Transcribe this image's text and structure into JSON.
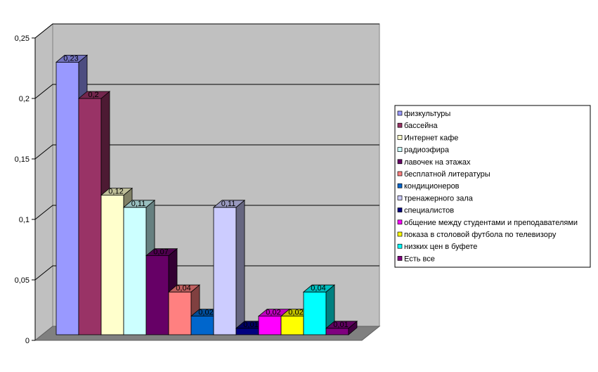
{
  "chart_data": {
    "type": "bar",
    "title": "",
    "xlabel": "",
    "ylabel": "",
    "ylim": [
      0,
      0.25
    ],
    "y_ticks": [
      "0",
      "0,05",
      "0,1",
      "0,15",
      "0,2",
      "0,25"
    ],
    "grid": true,
    "legend_position": "right",
    "series": [
      {
        "name": "физкультуры",
        "value": 0.23,
        "label": "0,23",
        "color": "#9999ff"
      },
      {
        "name": "бассейна",
        "value": 0.2,
        "label": "0,2",
        "color": "#993366"
      },
      {
        "name": "Интернет кафе",
        "value": 0.12,
        "label": "0,12",
        "color": "#ffffcc"
      },
      {
        "name": "радиоэфира",
        "value": 0.11,
        "label": "0,11",
        "color": "#ccffff"
      },
      {
        "name": "лавочек на этажах",
        "value": 0.07,
        "label": "0,07",
        "color": "#660066"
      },
      {
        "name": "бесплатной литературы",
        "value": 0.04,
        "label": "0,04",
        "color": "#ff8080"
      },
      {
        "name": "кондиционеров",
        "value": 0.02,
        "label": "0,02",
        "color": "#0066cc"
      },
      {
        "name": "тренажерного зала",
        "value": 0.11,
        "label": "0,11",
        "color": "#ccccff"
      },
      {
        "name": "специалистов",
        "value": 0.01,
        "label": "0,01",
        "color": "#000080"
      },
      {
        "name": "общение между студентами и преподавателями",
        "value": 0.02,
        "label": "0,02",
        "color": "#ff00ff"
      },
      {
        "name": "показа в столовой футбола по телевизору",
        "value": 0.02,
        "label": "0,02",
        "color": "#ffff00"
      },
      {
        "name": "низких цен в буфете",
        "value": 0.04,
        "label": "0,04",
        "color": "#00ffff"
      },
      {
        "name": "Есть все",
        "value": 0.01,
        "label": "0,01",
        "color": "#800080"
      }
    ],
    "wall_color": "#c0c0c0",
    "floor_color": "#808080"
  }
}
